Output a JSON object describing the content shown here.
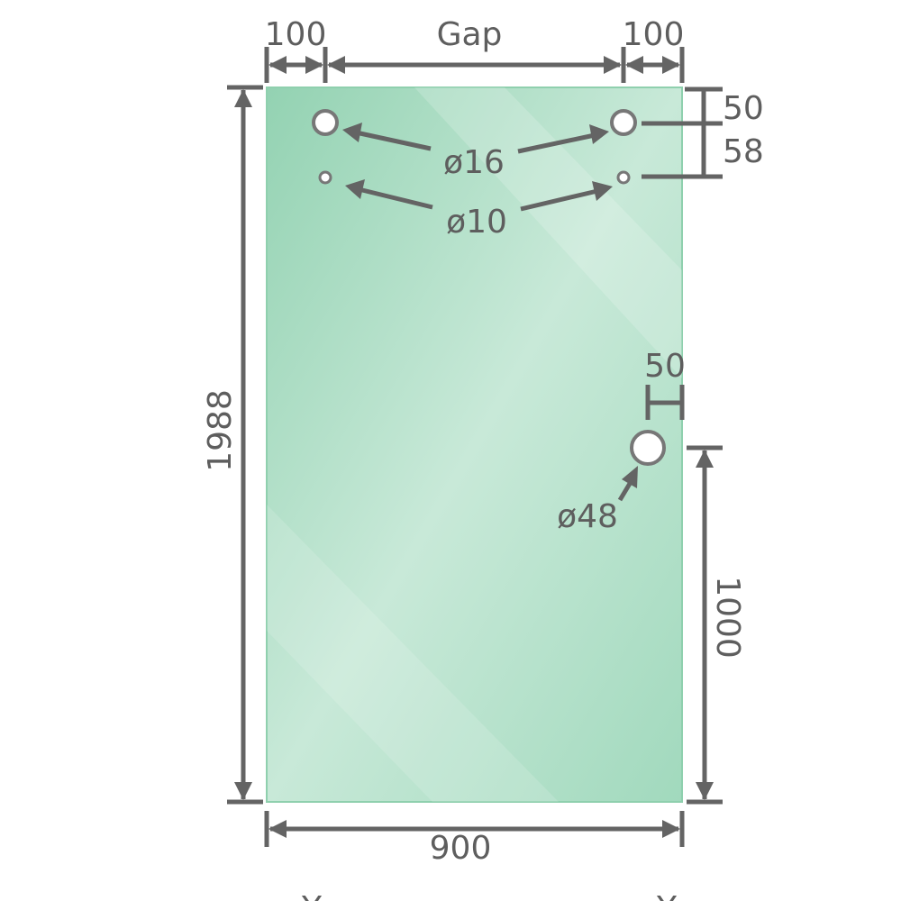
{
  "colors": {
    "glass": "#9ed6b8",
    "glass_light": "#cdeadb",
    "dimension": "#646464",
    "hole_ring": "#777777"
  },
  "labels": {
    "left_offset": "100",
    "gap": "Gap",
    "right_offset": "100",
    "top_hole_offset": "50",
    "hole_spacing": "58",
    "hole_16": "ø16",
    "hole_10": "ø10",
    "height": "1988",
    "handle_edge_offset": "50",
    "hole_48": "ø48",
    "handle_height": "1000",
    "width": "900",
    "bottom_left_mark": "Y",
    "bottom_right_mark": "Y"
  }
}
